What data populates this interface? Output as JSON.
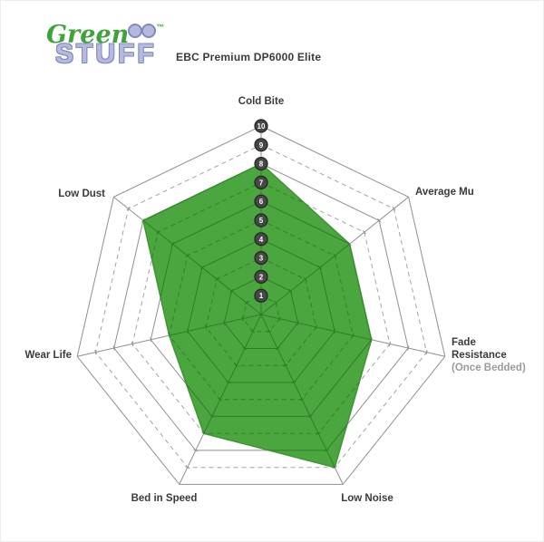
{
  "logo": {
    "green_text": "Green",
    "trademark": "™",
    "stuff_text": "STUFF",
    "green_color": "#3fa33a",
    "lavender_color": "#b5b9dd",
    "lavender_edge_color": "#8289c0"
  },
  "header": {
    "title": "EBC Premium DP6000 Elite"
  },
  "chart_data": {
    "type": "radar",
    "title": "EBC Premium DP6000 Elite",
    "scale": {
      "min": 0,
      "max": 10,
      "ring_step": 1,
      "tick_labels": [
        1,
        2,
        3,
        4,
        5,
        6,
        7,
        8,
        9,
        10
      ]
    },
    "axes": [
      {
        "label": "Cold Bite",
        "value": 8
      },
      {
        "label": "Average Mu",
        "value": 6
      },
      {
        "label": "Fade Resistance",
        "sublabel": "(Once Bedded)",
        "value": 6
      },
      {
        "label": "Low Noise",
        "value": 9
      },
      {
        "label": "Bed in Speed",
        "value": 7
      },
      {
        "label": "Wear Life",
        "value": 5
      },
      {
        "label": "Low Dust",
        "value": 8
      }
    ],
    "series": [
      {
        "name": "EBC Premium DP6000 Elite",
        "values": [
          8,
          6,
          6,
          9,
          7,
          5,
          8
        ]
      }
    ],
    "grid": {
      "solid_rings": [
        2,
        4,
        6,
        8,
        10
      ],
      "dashed_rings": [
        1,
        3,
        5,
        7,
        9
      ],
      "spokes": 7,
      "legend": "none"
    },
    "colors": {
      "fill": "#4ba63f",
      "fill_edge": "#3f9434",
      "grid_gray": "#8f8f8f",
      "grid_gray_dashed": "#a3a3a3",
      "grid_green": "#2e7d28",
      "grid_green_dashed": "#338029",
      "badge_fill": "#474747",
      "badge_stroke": "#232323",
      "badge_text": "#ffffff",
      "label_color": "#3b3b3b",
      "sublabel_color": "#9b9b9b"
    }
  }
}
